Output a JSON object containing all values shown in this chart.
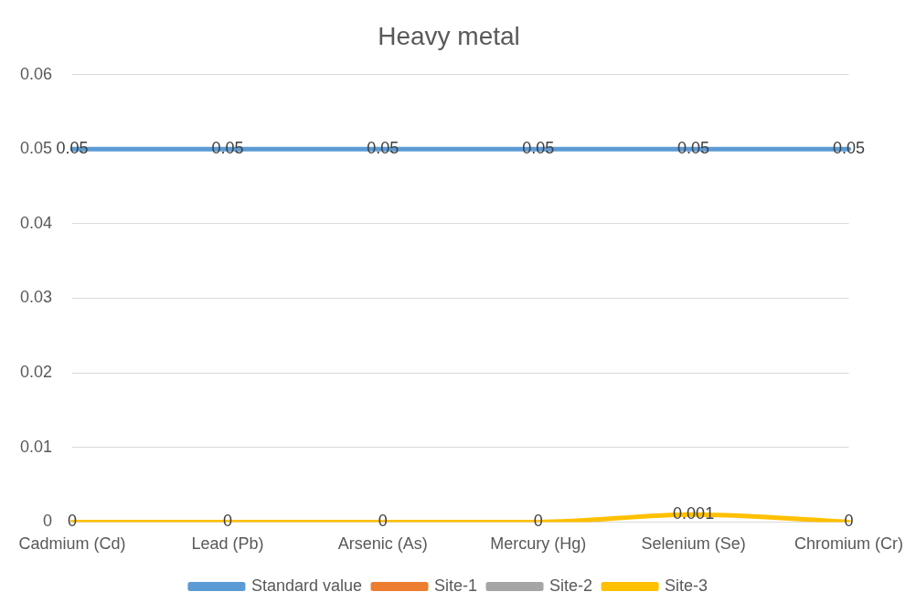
{
  "chart_data": {
    "type": "line",
    "title": "Heavy metal",
    "categories": [
      "Cadmium (Cd)",
      "Lead (Pb)",
      "Arsenic (As)",
      "Mercury (Hg)",
      "Selenium (Se)",
      "Chromium (Cr)"
    ],
    "series": [
      {
        "name": "Standard value",
        "color": "#5b9bd5",
        "values": [
          0.05,
          0.05,
          0.05,
          0.05,
          0.05,
          0.05
        ]
      },
      {
        "name": "Site-1",
        "color": "#ed7d31",
        "values": [
          null,
          null,
          null,
          null,
          null,
          null
        ]
      },
      {
        "name": "Site-2",
        "color": "#a5a5a5",
        "values": [
          null,
          null,
          null,
          null,
          null,
          null
        ]
      },
      {
        "name": "Site-3",
        "color": "#ffc000",
        "values": [
          0,
          0,
          0,
          0,
          0.001,
          0
        ]
      }
    ],
    "ylim": [
      0,
      0.06
    ],
    "yticks": [
      0,
      0.01,
      0.02,
      0.03,
      0.04,
      0.05,
      0.06
    ],
    "grid": "y",
    "legend": "bottom",
    "marker": "none",
    "line_style": "solid",
    "data_labels": true
  }
}
